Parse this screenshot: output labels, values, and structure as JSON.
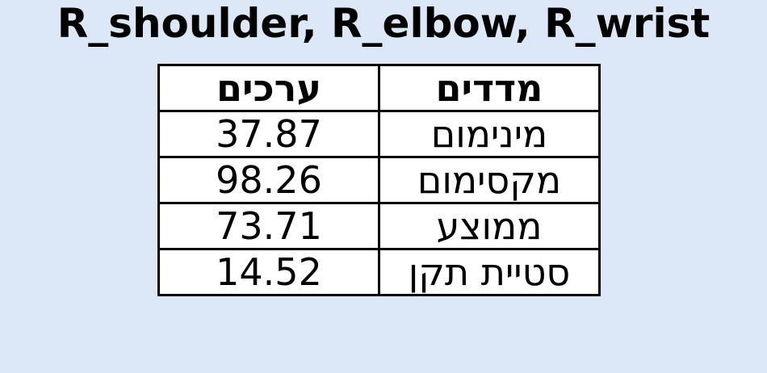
{
  "chart_data": {
    "type": "table",
    "title": "R_shoulder, R_elbow, R_wrist",
    "columns": [
      "ערכים",
      "מדדים"
    ],
    "rows": [
      {
        "value": "37.87",
        "measure": "מינימום"
      },
      {
        "value": "98.26",
        "measure": "מקסימום"
      },
      {
        "value": "73.71",
        "measure": "ממוצע"
      },
      {
        "value": "14.52",
        "measure": "סטיית תקן"
      }
    ]
  },
  "colors": {
    "background": "#dce8f7",
    "table_background": "#ffffff",
    "border": "#000000"
  }
}
